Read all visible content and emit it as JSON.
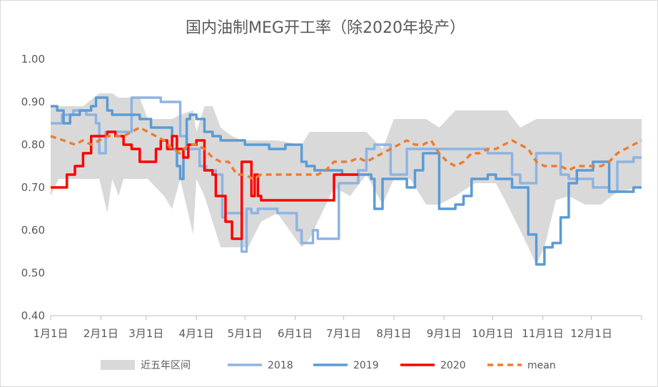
{
  "chart_data": {
    "type": "line",
    "title": "国内油制MEG开工率（除2020年投产）",
    "xlabel": "",
    "ylabel": "",
    "x_domain": [
      0,
      365
    ],
    "ylim": [
      0.4,
      1.0
    ],
    "y_ticks": [
      "1.00",
      "0.90",
      "0.80",
      "0.70",
      "0.60",
      "0.50",
      "0.40"
    ],
    "y_tick_values": [
      1.0,
      0.9,
      0.8,
      0.7,
      0.6,
      0.5,
      0.4
    ],
    "x_ticks": [
      "1月1日",
      "2月1日",
      "3月1日",
      "4月1日",
      "5月1日",
      "6月1日",
      "7月1日",
      "8月1日",
      "9月1日",
      "10月1日",
      "11月1日",
      "12月1日"
    ],
    "x_tick_days": [
      0,
      31,
      59,
      90,
      120,
      151,
      181,
      212,
      243,
      273,
      304,
      334
    ],
    "grid": false,
    "legend_position": "bottom",
    "legend": [
      "近五年区间",
      "2018",
      "2019",
      "2020",
      "mean"
    ],
    "colors": {
      "band": "#d9d9d9",
      "s2018": "#8db4e2",
      "s2019": "#5b9bd5",
      "s2020": "#ff0000",
      "mean": "#ed7d31"
    },
    "band": {
      "name": "近五年区间",
      "x": [
        0,
        5,
        12,
        20,
        30,
        35,
        38,
        42,
        45,
        55,
        60,
        70,
        75,
        80,
        88,
        90,
        95,
        100,
        105,
        112,
        118,
        122,
        130,
        140,
        155,
        160,
        175,
        185,
        195,
        205,
        212,
        222,
        232,
        240,
        250,
        262,
        275,
        282,
        290,
        300,
        305,
        312,
        320,
        330,
        340,
        350,
        365
      ],
      "low": [
        0.68,
        0.72,
        0.72,
        0.72,
        0.72,
        0.64,
        0.72,
        0.68,
        0.72,
        0.72,
        0.72,
        0.68,
        0.65,
        0.72,
        0.59,
        0.72,
        0.68,
        0.62,
        0.56,
        0.56,
        0.56,
        0.56,
        0.62,
        0.64,
        0.56,
        0.58,
        0.7,
        0.68,
        0.73,
        0.66,
        0.72,
        0.72,
        0.66,
        0.66,
        0.68,
        0.71,
        0.71,
        0.66,
        0.6,
        0.52,
        0.56,
        0.67,
        0.68,
        0.66,
        0.66,
        0.69,
        0.7
      ],
      "high": [
        0.89,
        0.89,
        0.89,
        0.89,
        0.92,
        0.92,
        0.92,
        0.91,
        0.91,
        0.91,
        0.86,
        0.86,
        0.86,
        0.87,
        0.88,
        0.83,
        0.89,
        0.89,
        0.84,
        0.82,
        0.81,
        0.81,
        0.81,
        0.81,
        0.8,
        0.83,
        0.83,
        0.83,
        0.83,
        0.79,
        0.86,
        0.86,
        0.86,
        0.84,
        0.88,
        0.88,
        0.88,
        0.88,
        0.84,
        0.86,
        0.86,
        0.86,
        0.86,
        0.86,
        0.86,
        0.86,
        0.86
      ]
    },
    "series": [
      {
        "name": "2018",
        "x": [
          0,
          6,
          7,
          12,
          14,
          20,
          22,
          28,
          30,
          34,
          38,
          48,
          50,
          62,
          68,
          72,
          76,
          80,
          84,
          88,
          92,
          96,
          100,
          102,
          106,
          108,
          112,
          118,
          121,
          124,
          128,
          135,
          140,
          150,
          152,
          155,
          160,
          162,
          165,
          170,
          175,
          178,
          180,
          185,
          190,
          195,
          200,
          210,
          220,
          240,
          250,
          260,
          270,
          280,
          285,
          290,
          300,
          310,
          315,
          320,
          325,
          330,
          335,
          340,
          345,
          350,
          360,
          365
        ],
        "y": [
          0.85,
          0.85,
          0.87,
          0.87,
          0.88,
          0.88,
          0.87,
          0.85,
          0.78,
          0.83,
          0.83,
          0.83,
          0.91,
          0.91,
          0.9,
          0.9,
          0.9,
          0.82,
          0.79,
          0.79,
          0.75,
          0.74,
          0.74,
          0.73,
          0.63,
          0.64,
          0.64,
          0.55,
          0.65,
          0.64,
          0.65,
          0.65,
          0.64,
          0.64,
          0.6,
          0.57,
          0.57,
          0.6,
          0.58,
          0.58,
          0.58,
          0.71,
          0.71,
          0.71,
          0.74,
          0.79,
          0.8,
          0.73,
          0.79,
          0.79,
          0.79,
          0.79,
          0.78,
          0.78,
          0.73,
          0.71,
          0.78,
          0.78,
          0.73,
          0.72,
          0.72,
          0.72,
          0.7,
          0.7,
          0.69,
          0.76,
          0.77,
          0.77
        ]
      },
      {
        "name": "2019",
        "x": [
          0,
          4,
          8,
          12,
          18,
          25,
          28,
          30,
          35,
          38,
          50,
          55,
          62,
          70,
          75,
          78,
          80,
          82,
          84,
          86,
          88,
          90,
          95,
          100,
          105,
          110,
          120,
          125,
          135,
          140,
          145,
          150,
          155,
          158,
          163,
          170,
          180,
          190,
          198,
          200,
          205,
          210,
          215,
          220,
          225,
          230,
          235,
          240,
          245,
          250,
          255,
          260,
          265,
          270,
          275,
          280,
          285,
          290,
          295,
          300,
          305,
          310,
          315,
          320,
          325,
          330,
          335,
          340,
          345,
          350,
          355,
          360,
          365
        ],
        "y": [
          0.89,
          0.88,
          0.85,
          0.87,
          0.88,
          0.89,
          0.91,
          0.91,
          0.88,
          0.87,
          0.87,
          0.86,
          0.84,
          0.84,
          0.79,
          0.75,
          0.72,
          0.79,
          0.86,
          0.87,
          0.87,
          0.86,
          0.83,
          0.82,
          0.81,
          0.81,
          0.8,
          0.8,
          0.79,
          0.79,
          0.8,
          0.8,
          0.76,
          0.75,
          0.74,
          0.74,
          0.73,
          0.73,
          0.72,
          0.65,
          0.72,
          0.72,
          0.72,
          0.7,
          0.74,
          0.78,
          0.78,
          0.65,
          0.65,
          0.66,
          0.68,
          0.72,
          0.72,
          0.73,
          0.72,
          0.72,
          0.7,
          0.7,
          0.59,
          0.52,
          0.56,
          0.57,
          0.63,
          0.71,
          0.74,
          0.74,
          0.76,
          0.76,
          0.69,
          0.69,
          0.69,
          0.7,
          0.7
        ]
      },
      {
        "name": "2020",
        "x": [
          0,
          5,
          10,
          15,
          20,
          25,
          30,
          35,
          40,
          45,
          50,
          55,
          60,
          65,
          68,
          70,
          72,
          75,
          78,
          80,
          82,
          85,
          90,
          95,
          100,
          102,
          105,
          108,
          112,
          115,
          118,
          120,
          122,
          124,
          126,
          128,
          130,
          140,
          150,
          160,
          170,
          175,
          180,
          185,
          190
        ],
        "y": [
          0.7,
          0.7,
          0.73,
          0.75,
          0.78,
          0.82,
          0.82,
          0.83,
          0.82,
          0.8,
          0.79,
          0.76,
          0.76,
          0.79,
          0.81,
          0.81,
          0.79,
          0.82,
          0.79,
          0.79,
          0.77,
          0.8,
          0.81,
          0.74,
          0.73,
          0.68,
          0.68,
          0.62,
          0.58,
          0.58,
          0.76,
          0.76,
          0.76,
          0.68,
          0.73,
          0.68,
          0.67,
          0.67,
          0.67,
          0.67,
          0.67,
          0.73,
          0.73,
          0.73,
          0.73
        ]
      },
      {
        "name": "mean",
        "x": [
          0,
          8,
          15,
          20,
          25,
          30,
          35,
          40,
          45,
          50,
          55,
          60,
          65,
          70,
          75,
          80,
          85,
          90,
          95,
          100,
          105,
          110,
          115,
          120,
          125,
          130,
          135,
          140,
          145,
          150,
          155,
          160,
          165,
          170,
          175,
          180,
          185,
          190,
          195,
          200,
          205,
          210,
          215,
          220,
          225,
          230,
          235,
          240,
          245,
          250,
          255,
          260,
          265,
          270,
          275,
          280,
          285,
          290,
          295,
          300,
          305,
          310,
          315,
          320,
          325,
          330,
          335,
          340,
          345,
          350,
          355,
          360,
          365
        ],
        "y": [
          0.82,
          0.81,
          0.8,
          0.81,
          0.8,
          0.81,
          0.82,
          0.82,
          0.82,
          0.83,
          0.84,
          0.83,
          0.82,
          0.81,
          0.79,
          0.78,
          0.8,
          0.8,
          0.79,
          0.77,
          0.76,
          0.76,
          0.73,
          0.73,
          0.72,
          0.73,
          0.73,
          0.73,
          0.73,
          0.73,
          0.73,
          0.73,
          0.73,
          0.74,
          0.76,
          0.76,
          0.76,
          0.77,
          0.76,
          0.77,
          0.78,
          0.79,
          0.8,
          0.81,
          0.8,
          0.8,
          0.81,
          0.78,
          0.76,
          0.75,
          0.76,
          0.78,
          0.78,
          0.79,
          0.79,
          0.8,
          0.81,
          0.8,
          0.79,
          0.76,
          0.75,
          0.75,
          0.75,
          0.74,
          0.75,
          0.75,
          0.75,
          0.75,
          0.76,
          0.78,
          0.79,
          0.8,
          0.81
        ]
      }
    ]
  }
}
